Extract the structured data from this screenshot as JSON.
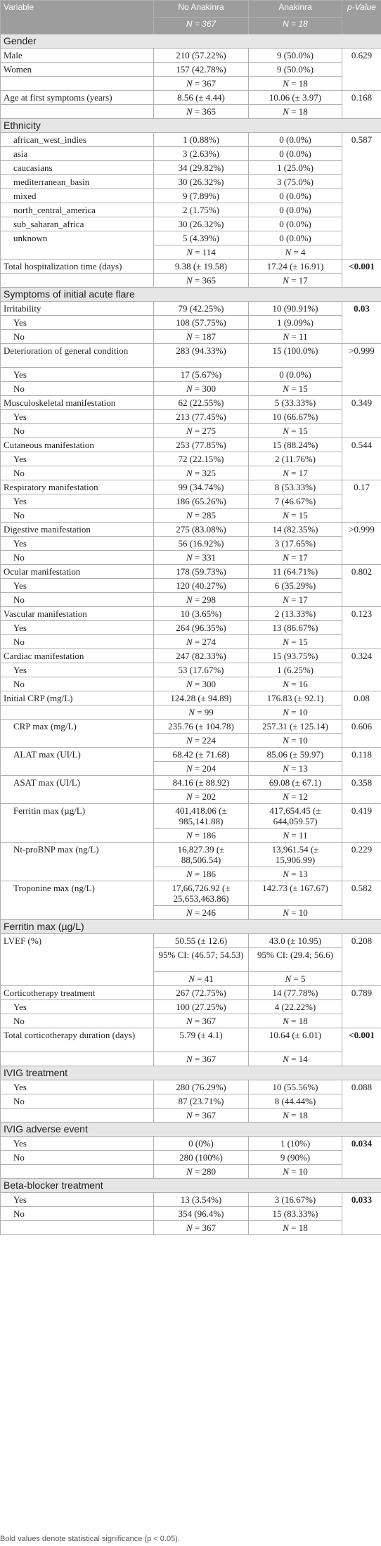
{
  "header": {
    "variable": "Variable",
    "no_anakinra": "No Anakinra",
    "anakinra": "Anakinra",
    "p_value": "p-Value",
    "n_no": "N = 367",
    "n_ana": "N = 18"
  },
  "rows": [
    {
      "kind": "section",
      "label": "Gender"
    },
    {
      "kind": "row",
      "label": "Male",
      "a": "210 (57.22%)",
      "b": "9 (50.0%)",
      "p": "0.629",
      "p_bold": false,
      "p_rowspan": 3
    },
    {
      "kind": "row",
      "label": "Women",
      "a": "157 (42.78%)",
      "b": "9 (50.0%)"
    },
    {
      "kind": "nrow",
      "a": "N = 367",
      "b": "N = 18"
    },
    {
      "kind": "row",
      "label": "Age at first symptoms (years)",
      "a": "8.56 (± 4.44)",
      "b": "10.06 (± 3.97)",
      "p": "0.168",
      "p_bold": false,
      "p_rowspan": 2
    },
    {
      "kind": "nrow",
      "a": "N = 365",
      "b": "N = 18"
    },
    {
      "kind": "section",
      "label": "Ethnicity"
    },
    {
      "kind": "row",
      "indent": true,
      "label": "african_west_indies",
      "a": "1 (0.88%)",
      "b": "0 (0.0%)",
      "p": "0.587",
      "p_bold": false,
      "p_rowspan": 9
    },
    {
      "kind": "row",
      "indent": true,
      "label": "asia",
      "a": "3 (2.63%)",
      "b": "0 (0.0%)"
    },
    {
      "kind": "row",
      "indent": true,
      "label": "caucasians",
      "a": "34 (29.82%)",
      "b": "1 (25.0%)"
    },
    {
      "kind": "row",
      "indent": true,
      "label": "mediterranean_basin",
      "a": "30 (26.32%)",
      "b": "3 (75.0%)"
    },
    {
      "kind": "row",
      "indent": true,
      "label": "mixed",
      "a": "9 (7.89%)",
      "b": "0 (0.0%)"
    },
    {
      "kind": "row",
      "indent": true,
      "label": "north_central_america",
      "a": "2 (1.75%)",
      "b": "0 (0.0%)"
    },
    {
      "kind": "row",
      "indent": true,
      "label": "sub_saharan_africa",
      "a": "30 (26.32%)",
      "b": "0 (0.0%)"
    },
    {
      "kind": "row",
      "indent": true,
      "label": "unknown",
      "a": "5 (4.39%)",
      "b": "0 (0.0%)",
      "label_rowspan": 2
    },
    {
      "kind": "nrow",
      "skip_label": true,
      "a": "N = 114",
      "b": "N = 4"
    },
    {
      "kind": "row",
      "label": "Total hospitalization time (days)",
      "a": "9.38 (± 19.58)",
      "b": "17.24 (± 16.91)",
      "p": "<0.001",
      "p_bold": true,
      "p_rowspan": 2
    },
    {
      "kind": "nrow",
      "a": "N = 365",
      "b": "N = 17"
    },
    {
      "kind": "section",
      "label": "Symptoms of initial acute flare"
    },
    {
      "kind": "row",
      "label": "Irritability",
      "a": "79 (42.25%)",
      "b": "10 (90.91%)",
      "p": "0.03",
      "p_bold": true,
      "p_rowspan": 3
    },
    {
      "kind": "row",
      "indent": true,
      "label": "Yes",
      "a": "108 (57.75%)",
      "b": "1 (9.09%)"
    },
    {
      "kind": "row",
      "indent": true,
      "label": "No",
      "a": "N = 187",
      "b": "N = 11",
      "n_style": true
    },
    {
      "kind": "row",
      "label": "Deterioration of general condition",
      "a": "283 (94.33%)",
      "b": "15 (100.0%)",
      "p": ">0.999",
      "p_bold": false,
      "p_rowspan": 3,
      "tall": true
    },
    {
      "kind": "row",
      "indent": true,
      "label": "Yes",
      "a": "17 (5.67%)",
      "b": "0 (0.0%)"
    },
    {
      "kind": "row",
      "indent": true,
      "label": "No",
      "a": "N = 300",
      "b": "N = 15",
      "n_style": true
    },
    {
      "kind": "row",
      "label": "Musculoskeletal manifestation",
      "a": "62 (22.55%)",
      "b": "5 (33.33%)",
      "p": "0.349",
      "p_bold": false,
      "p_rowspan": 3
    },
    {
      "kind": "row",
      "indent": true,
      "label": "Yes",
      "a": "213 (77.45%)",
      "b": "10 (66.67%)"
    },
    {
      "kind": "row",
      "indent": true,
      "label": "No",
      "a": "N = 275",
      "b": "N = 15",
      "n_style": true
    },
    {
      "kind": "row",
      "label": "Cutaneous manifestation",
      "a": "253 (77.85%)",
      "b": "15 (88.24%)",
      "p": "0.544",
      "p_bold": false,
      "p_rowspan": 3
    },
    {
      "kind": "row",
      "indent": true,
      "label": "Yes",
      "a": "72 (22.15%)",
      "b": "2 (11.76%)"
    },
    {
      "kind": "row",
      "indent": true,
      "label": "No",
      "a": "N = 325",
      "b": "N = 17",
      "n_style": true
    },
    {
      "kind": "row",
      "label": "Respiratory manifestation",
      "a": "99 (34.74%)",
      "b": "8 (53.33%)",
      "p": "0.17",
      "p_bold": false,
      "p_rowspan": 3
    },
    {
      "kind": "row",
      "indent": true,
      "label": "Yes",
      "a": "186 (65.26%)",
      "b": "7 (46.67%)"
    },
    {
      "kind": "row",
      "indent": true,
      "label": "No",
      "a": "N = 285",
      "b": "N = 15",
      "n_style": true
    },
    {
      "kind": "row",
      "label": "Digestive manifestation",
      "a": "275 (83.08%)",
      "b": "14 (82.35%)",
      "p": ">0.999",
      "p_bold": false,
      "p_rowspan": 3
    },
    {
      "kind": "row",
      "indent": true,
      "label": "Yes",
      "a": "56 (16.92%)",
      "b": "3 (17.65%)"
    },
    {
      "kind": "row",
      "indent": true,
      "label": "No",
      "a": "N = 331",
      "b": "N = 17",
      "n_style": true
    },
    {
      "kind": "row",
      "label": "Ocular manifestation",
      "a": "178 (59.73%)",
      "b": "11 (64.71%)",
      "p": "0.802",
      "p_bold": false,
      "p_rowspan": 3
    },
    {
      "kind": "row",
      "indent": true,
      "label": "Yes",
      "a": "120 (40.27%)",
      "b": "6 (35.29%)"
    },
    {
      "kind": "row",
      "indent": true,
      "label": "No",
      "a": "N = 298",
      "b": "N = 17",
      "n_style": true
    },
    {
      "kind": "row",
      "label": "Vascular manifestation",
      "a": "10 (3.65%)",
      "b": "2 (13.33%)",
      "p": "0.123",
      "p_bold": false,
      "p_rowspan": 3
    },
    {
      "kind": "row",
      "indent": true,
      "label": "Yes",
      "a": "264 (96.35%)",
      "b": "13 (86.67%)"
    },
    {
      "kind": "row",
      "indent": true,
      "label": "No",
      "a": "N = 274",
      "b": "N = 15",
      "n_style": true
    },
    {
      "kind": "row",
      "label": "Cardiac manifestation",
      "a": "247 (82.33%)",
      "b": "15 (93.75%)",
      "p": "0.324",
      "p_bold": false,
      "p_rowspan": 3
    },
    {
      "kind": "row",
      "indent": true,
      "label": "Yes",
      "a": "53 (17.67%)",
      "b": "1 (6.25%)"
    },
    {
      "kind": "row",
      "indent": true,
      "label": "No",
      "a": "N = 300",
      "b": "N = 16",
      "n_style": true
    },
    {
      "kind": "row",
      "label": "Initial CRP (mg/L)",
      "a": "124.28 (± 94.89)",
      "b": "176.83 (± 92.1)",
      "p": "0.08",
      "p_bold": false,
      "p_rowspan": 2
    },
    {
      "kind": "nrow",
      "a": "N = 99",
      "b": "N = 10"
    },
    {
      "kind": "row",
      "indent": true,
      "label": "CRP max (mg/L)",
      "a": "235.76 (± 104.78)",
      "b": "257.31 (± 125.14)",
      "p": "0.606",
      "p_bold": false,
      "p_rowspan": 2,
      "label_rowspan": 2
    },
    {
      "kind": "nrow",
      "skip_label": true,
      "a": "N = 224",
      "b": "N = 10"
    },
    {
      "kind": "row",
      "indent": true,
      "label": "ALAT max (UI/L)",
      "a": "68.42 (± 71.68)",
      "b": "85.06 (± 59.97)",
      "p": "0.118",
      "p_bold": false,
      "p_rowspan": 2,
      "label_rowspan": 2
    },
    {
      "kind": "nrow",
      "skip_label": true,
      "a": "N = 204",
      "b": "N = 13"
    },
    {
      "kind": "row",
      "indent": true,
      "label": "ASAT max (UI/L)",
      "a": "84.16 (± 88.92)",
      "b": "69.08 (± 67.1)",
      "p": "0.358",
      "p_bold": false,
      "p_rowspan": 2,
      "label_rowspan": 2
    },
    {
      "kind": "nrow",
      "skip_label": true,
      "a": "N = 202",
      "b": "N = 12"
    },
    {
      "kind": "row",
      "indent": true,
      "label": "Ferritin max (µg/L)",
      "a": "401,418.06 (± 985,141.88)",
      "b": "417,654.45 (± 644,059.57)",
      "p": "0.419",
      "p_bold": false,
      "p_rowspan": 2,
      "label_rowspan": 2,
      "tall": true
    },
    {
      "kind": "nrow",
      "skip_label": true,
      "a": "N = 186",
      "b": "N = 11"
    },
    {
      "kind": "row",
      "indent": true,
      "label": "Nt-proBNP max (ng/L)",
      "a": "16,827.39 (± 88,506.54)",
      "b": "13,961.54 (± 15,906.99)",
      "p": "0.229",
      "p_bold": false,
      "p_rowspan": 2,
      "label_rowspan": 2,
      "tall": true
    },
    {
      "kind": "nrow",
      "skip_label": true,
      "a": "N = 186",
      "b": "N = 13"
    },
    {
      "kind": "row",
      "indent": true,
      "label": "Troponine max (ng/L)",
      "a": "17,66,726.92 (± 25,653,463.86)",
      "b": "142.73 (± 167.67)",
      "p": "0.582",
      "p_bold": false,
      "p_rowspan": 2,
      "label_rowspan": 2,
      "tall": true
    },
    {
      "kind": "nrow",
      "skip_label": true,
      "a": "N = 246",
      "b": "N = 10"
    },
    {
      "kind": "section",
      "label": "Ferritin max (µg/L)"
    },
    {
      "kind": "row",
      "label": "LVEF (%)",
      "a": "50.55 (± 12.6)",
      "b": "43.0 (± 10.95)",
      "p": "0.208",
      "p_bold": false,
      "p_rowspan": 3,
      "label_rowspan": 3
    },
    {
      "kind": "nrow",
      "skip_label": true,
      "a": "95% CI: (46.57; 54.53)",
      "b": "95% CI: (29.4; 56.6)",
      "plain": true,
      "tall": true
    },
    {
      "kind": "nrow",
      "skip_label": true,
      "a": "N = 41",
      "b": "N = 5"
    },
    {
      "kind": "row",
      "label": "Corticotherapy treatment",
      "a": "267 (72.75%)",
      "b": "14 (77.78%)",
      "p": "0.789",
      "p_bold": false,
      "p_rowspan": 3
    },
    {
      "kind": "row",
      "indent": true,
      "label": "Yes",
      "a": "100 (27.25%)",
      "b": "4 (22.22%)"
    },
    {
      "kind": "row",
      "indent": true,
      "label": "No",
      "a": "N = 367",
      "b": "N = 18",
      "n_style": true
    },
    {
      "kind": "row",
      "label": "Total corticotherapy duration (days)",
      "a": "5.79 (± 4.1)",
      "b": "10.64 (± 6.01)",
      "p": "<0.001",
      "p_bold": true,
      "p_rowspan": 2,
      "tall": true
    },
    {
      "kind": "nrow",
      "a": "N = 367",
      "b": "N = 14"
    },
    {
      "kind": "section",
      "label": "IVIG treatment"
    },
    {
      "kind": "row",
      "indent": true,
      "label": "Yes",
      "a": "280 (76.29%)",
      "b": "10 (55.56%)",
      "p": "0.088",
      "p_bold": false,
      "p_rowspan": 3
    },
    {
      "kind": "row",
      "indent": true,
      "label": "No",
      "a": "87 (23.71%)",
      "b": "8 (44.44%)"
    },
    {
      "kind": "nrow",
      "a": "N = 367",
      "b": "N = 18"
    },
    {
      "kind": "section",
      "label": "IVIG adverse event"
    },
    {
      "kind": "row",
      "indent": true,
      "label": "Yes",
      "a": "0 (0%)",
      "b": "1 (10%)",
      "p": "0.034",
      "p_bold": true,
      "p_rowspan": 3
    },
    {
      "kind": "row",
      "indent": true,
      "label": "No",
      "a": "280 (100%)",
      "b": "9 (90%)"
    },
    {
      "kind": "nrow",
      "a": "N = 280",
      "b": "N = 10"
    },
    {
      "kind": "section",
      "label": "Beta-blocker treatment"
    },
    {
      "kind": "row",
      "indent": true,
      "label": "Yes",
      "a": "13 (3.54%)",
      "b": "3 (16.67%)",
      "p": "0.033",
      "p_bold": true,
      "p_rowspan": 3
    },
    {
      "kind": "row",
      "indent": true,
      "label": "No",
      "a": "354 (96.4%)",
      "b": "15 (83.33%)"
    },
    {
      "kind": "nrow",
      "a": "N = 367",
      "b": "N = 18"
    }
  ],
  "footnote": "Bold values denote statistical significance (p < 0.05)."
}
